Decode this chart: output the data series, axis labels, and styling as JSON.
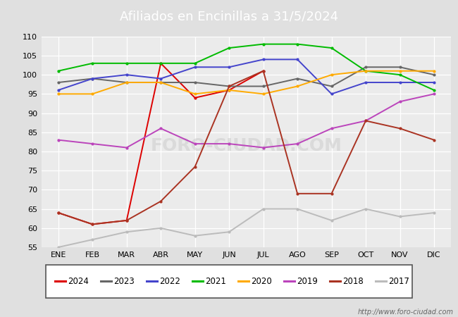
{
  "title": "Afiliados en Encinillas a 31/5/2024",
  "title_bg_color": "#5599ee",
  "months": [
    "ENE",
    "FEB",
    "MAR",
    "ABR",
    "MAY",
    "JUN",
    "JUL",
    "AGO",
    "SEP",
    "OCT",
    "NOV",
    "DIC"
  ],
  "ylim": [
    55,
    110
  ],
  "yticks": [
    55,
    60,
    65,
    70,
    75,
    80,
    85,
    90,
    95,
    100,
    105,
    110
  ],
  "series": {
    "2024": {
      "color": "#dd0000",
      "data": [
        64,
        61,
        62,
        103,
        94,
        96,
        101,
        null,
        null,
        null,
        null,
        null
      ]
    },
    "2023": {
      "color": "#666666",
      "data": [
        98,
        99,
        98,
        98,
        98,
        97,
        97,
        99,
        97,
        102,
        102,
        100
      ]
    },
    "2022": {
      "color": "#4444cc",
      "data": [
        96,
        99,
        100,
        99,
        102,
        102,
        104,
        104,
        95,
        98,
        98,
        98
      ]
    },
    "2021": {
      "color": "#00bb00",
      "data": [
        101,
        103,
        103,
        103,
        103,
        107,
        108,
        108,
        107,
        101,
        100,
        96
      ]
    },
    "2020": {
      "color": "#ffaa00",
      "data": [
        95,
        95,
        98,
        98,
        95,
        96,
        95,
        97,
        100,
        101,
        101,
        101
      ]
    },
    "2019": {
      "color": "#bb44bb",
      "data": [
        83,
        82,
        81,
        86,
        82,
        82,
        81,
        82,
        86,
        88,
        93,
        95
      ]
    },
    "2018": {
      "color": "#aa3322",
      "data": [
        64,
        61,
        62,
        67,
        76,
        97,
        101,
        69,
        69,
        88,
        86,
        83
      ]
    },
    "2017": {
      "color": "#bbbbbb",
      "data": [
        55,
        57,
        59,
        60,
        58,
        59,
        65,
        65,
        62,
        65,
        63,
        64
      ]
    }
  },
  "legend_order": [
    "2024",
    "2023",
    "2022",
    "2021",
    "2020",
    "2019",
    "2018",
    "2017"
  ],
  "watermark": "FORO-CIUDAD.COM",
  "url": "http://www.foro-ciudad.com",
  "background_color": "#e0e0e0",
  "plot_bg_color": "#ebebeb"
}
